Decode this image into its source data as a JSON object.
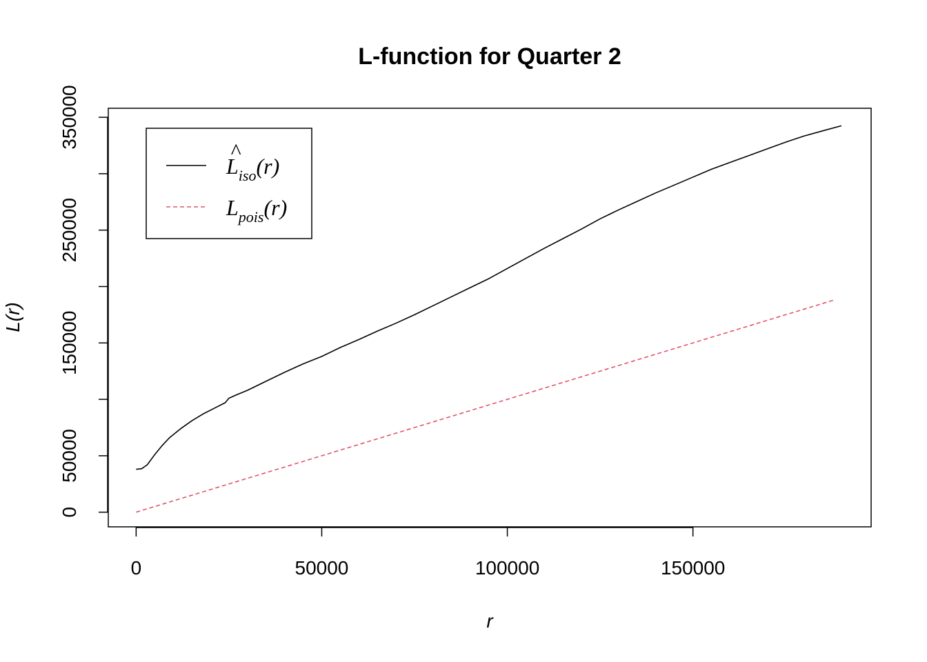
{
  "chart_data": {
    "type": "line",
    "title": "L-function for Quarter 2",
    "xlabel": "r",
    "ylabel": "L(r)",
    "xlim": [
      -7500,
      198000
    ],
    "ylim": [
      -13000,
      358000
    ],
    "x_ticks": [
      0,
      50000,
      100000,
      150000
    ],
    "y_ticks": [
      0,
      50000,
      100000,
      150000,
      200000,
      250000,
      300000,
      350000
    ],
    "x_tick_labels": [
      "0",
      "50000",
      "100000",
      "150000"
    ],
    "y_tick_labels": [
      "0",
      "50000",
      "",
      "150000",
      "",
      "250000",
      "",
      "350000"
    ],
    "grid": false,
    "legend_position": "top-left",
    "series": [
      {
        "name": "L̂_iso(r)",
        "legend_base": "L",
        "legend_hat": "^",
        "legend_sub": "iso",
        "legend_args": "(r)",
        "color": "#000000",
        "dash": "solid",
        "x": [
          0,
          1500,
          3000,
          5000,
          7000,
          9000,
          12000,
          15000,
          18000,
          21000,
          24000,
          25000,
          27000,
          30000,
          35000,
          40000,
          45000,
          50000,
          55000,
          60000,
          65000,
          70000,
          75000,
          80000,
          85000,
          90000,
          95000,
          100000,
          105000,
          110000,
          115000,
          120000,
          125000,
          130000,
          135000,
          140000,
          145000,
          150000,
          155000,
          160000,
          165000,
          170000,
          175000,
          180000,
          185000,
          190000
        ],
        "y": [
          38000,
          38500,
          42000,
          51000,
          59000,
          66000,
          74000,
          81000,
          87000,
          92000,
          97000,
          101000,
          104000,
          108000,
          116000,
          124000,
          131500,
          138000,
          146000,
          153000,
          160500,
          167500,
          175000,
          183000,
          191000,
          199000,
          207000,
          216000,
          225000,
          234000,
          242500,
          251000,
          260000,
          268000,
          275500,
          283000,
          290000,
          297000,
          304000,
          310000,
          316000,
          322000,
          328000,
          333500,
          338000,
          342500
        ]
      },
      {
        "name": "L_pois(r)",
        "legend_base": "L",
        "legend_hat": "",
        "legend_sub": "pois",
        "legend_args": "(r)",
        "color": "#DF536B",
        "dash": "dashed",
        "x": [
          0,
          188000
        ],
        "y": [
          0,
          188000
        ]
      }
    ]
  }
}
